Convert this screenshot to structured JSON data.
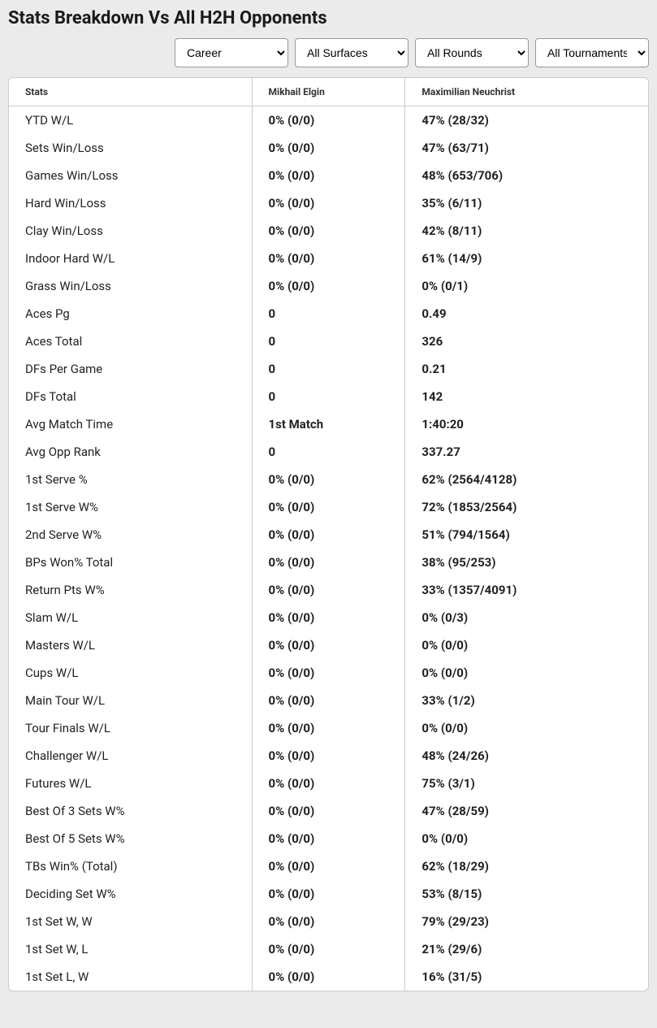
{
  "title": "Stats Breakdown Vs All H2H Opponents",
  "filters": {
    "period": {
      "selected": "Career",
      "options": [
        "Career"
      ]
    },
    "surfaces": {
      "selected": "All Surfaces",
      "options": [
        "All Surfaces"
      ]
    },
    "rounds": {
      "selected": "All Rounds",
      "options": [
        "All Rounds"
      ]
    },
    "tournaments": {
      "selected": "All Tournaments",
      "options": [
        "All Tournaments"
      ]
    }
  },
  "table": {
    "columns": {
      "stats": "Stats",
      "player1": "Mikhail Elgin",
      "player2": "Maximilian Neuchrist"
    },
    "rows": [
      {
        "label": "YTD W/L",
        "p1": "0% (0/0)",
        "p2": "47% (28/32)"
      },
      {
        "label": "Sets Win/Loss",
        "p1": "0% (0/0)",
        "p2": "47% (63/71)"
      },
      {
        "label": "Games Win/Loss",
        "p1": "0% (0/0)",
        "p2": "48% (653/706)"
      },
      {
        "label": "Hard Win/Loss",
        "p1": "0% (0/0)",
        "p2": "35% (6/11)"
      },
      {
        "label": "Clay Win/Loss",
        "p1": "0% (0/0)",
        "p2": "42% (8/11)"
      },
      {
        "label": "Indoor Hard W/L",
        "p1": "0% (0/0)",
        "p2": "61% (14/9)"
      },
      {
        "label": "Grass Win/Loss",
        "p1": "0% (0/0)",
        "p2": "0% (0/1)"
      },
      {
        "label": "Aces Pg",
        "p1": "0",
        "p2": "0.49"
      },
      {
        "label": "Aces Total",
        "p1": "0",
        "p2": "326"
      },
      {
        "label": "DFs Per Game",
        "p1": "0",
        "p2": "0.21"
      },
      {
        "label": "DFs Total",
        "p1": "0",
        "p2": "142"
      },
      {
        "label": "Avg Match Time",
        "p1": "1st Match",
        "p2": "1:40:20"
      },
      {
        "label": "Avg Opp Rank",
        "p1": "0",
        "p2": "337.27"
      },
      {
        "label": "1st Serve %",
        "p1": "0% (0/0)",
        "p2": "62% (2564/4128)"
      },
      {
        "label": "1st Serve W%",
        "p1": "0% (0/0)",
        "p2": "72% (1853/2564)"
      },
      {
        "label": "2nd Serve W%",
        "p1": "0% (0/0)",
        "p2": "51% (794/1564)"
      },
      {
        "label": "BPs Won% Total",
        "p1": "0% (0/0)",
        "p2": "38% (95/253)"
      },
      {
        "label": "Return Pts W%",
        "p1": "0% (0/0)",
        "p2": "33% (1357/4091)"
      },
      {
        "label": "Slam W/L",
        "p1": "0% (0/0)",
        "p2": "0% (0/3)"
      },
      {
        "label": "Masters W/L",
        "p1": "0% (0/0)",
        "p2": "0% (0/0)"
      },
      {
        "label": "Cups W/L",
        "p1": "0% (0/0)",
        "p2": "0% (0/0)"
      },
      {
        "label": "Main Tour W/L",
        "p1": "0% (0/0)",
        "p2": "33% (1/2)"
      },
      {
        "label": "Tour Finals W/L",
        "p1": "0% (0/0)",
        "p2": "0% (0/0)"
      },
      {
        "label": "Challenger W/L",
        "p1": "0% (0/0)",
        "p2": "48% (24/26)"
      },
      {
        "label": "Futures W/L",
        "p1": "0% (0/0)",
        "p2": "75% (3/1)"
      },
      {
        "label": "Best Of 3 Sets W%",
        "p1": "0% (0/0)",
        "p2": "47% (28/59)"
      },
      {
        "label": "Best Of 5 Sets W%",
        "p1": "0% (0/0)",
        "p2": "0% (0/0)"
      },
      {
        "label": "TBs Win% (Total)",
        "p1": "0% (0/0)",
        "p2": "62% (18/29)"
      },
      {
        "label": "Deciding Set W%",
        "p1": "0% (0/0)",
        "p2": "53% (8/15)"
      },
      {
        "label": "1st Set W, W",
        "p1": "0% (0/0)",
        "p2": "79% (29/23)"
      },
      {
        "label": "1st Set W, L",
        "p1": "0% (0/0)",
        "p2": "21% (29/6)"
      },
      {
        "label": "1st Set L, W",
        "p1": "0% (0/0)",
        "p2": "16% (31/5)"
      }
    ]
  },
  "styling": {
    "page_bg": "#ebebeb",
    "card_bg": "#ffffff",
    "border_color": "#cccccc",
    "title_color": "#1a1a1a",
    "title_fontsize": 22,
    "header_fontsize": 12,
    "cell_fontsize": 15,
    "value_fontweight": 700,
    "label_fontweight": 400
  }
}
